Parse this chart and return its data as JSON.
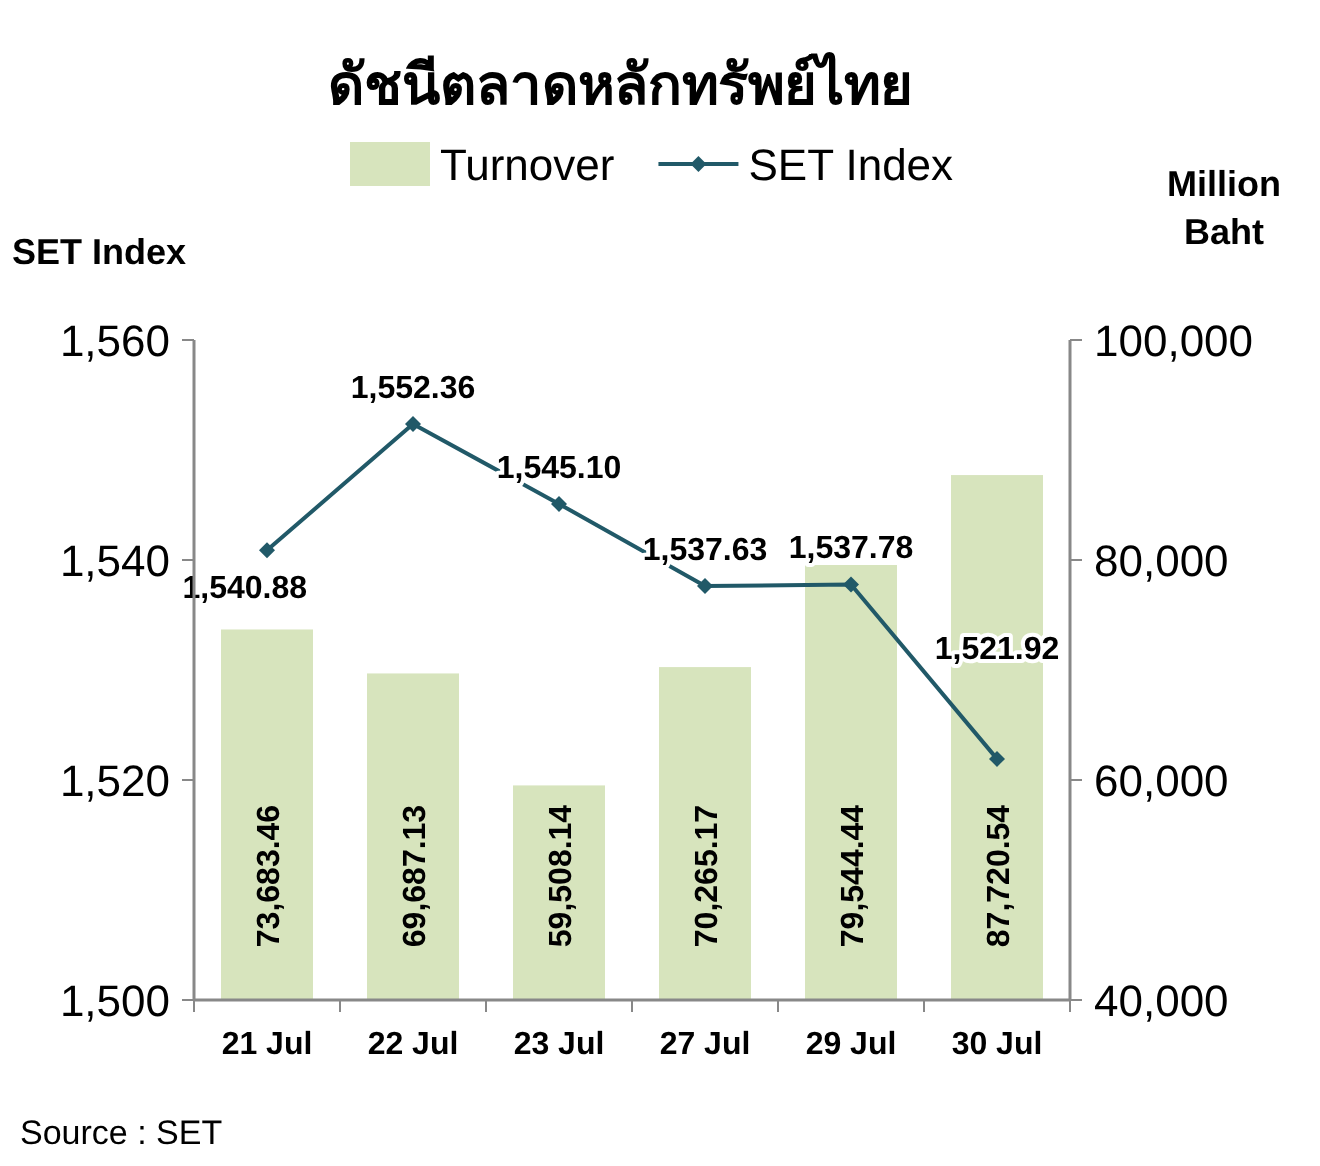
{
  "chart_data": {
    "type": "bar",
    "title": "ดัชนีตลาดหลักทรัพย์ไทย",
    "ylabel": "SET Index",
    "y2label": "Million Baht",
    "categories": [
      "21 Jul",
      "22 Jul",
      "23 Jul",
      "27 Jul",
      "29 Jul",
      "30 Jul"
    ],
    "series": [
      {
        "name": "Turnover",
        "axis": "y2",
        "color": "#d7e4bd",
        "values": [
          73683.46,
          69687.13,
          59508.14,
          70265.17,
          79544.44,
          87720.54
        ],
        "value_labels": [
          "73,683.46",
          "69,687.13",
          "59,508.14",
          "70,265.17",
          "79,544.44",
          "87,720.54"
        ]
      },
      {
        "name": "SET Index",
        "type": "line",
        "axis": "y",
        "color": "#215968",
        "marker": "diamond",
        "values": [
          1540.88,
          1552.36,
          1545.1,
          1537.63,
          1537.78,
          1521.92
        ],
        "value_labels": [
          "1,540.88",
          "1,552.36",
          "1,545.10",
          "1,537.63",
          "1,537.78",
          "1,521.92"
        ]
      }
    ],
    "ylim": [
      1500,
      1560
    ],
    "yticks": [
      {
        "value": 1500,
        "label": "1,500"
      },
      {
        "value": 1520,
        "label": "1,520"
      },
      {
        "value": 1540,
        "label": "1,540"
      },
      {
        "value": 1560,
        "label": "1,560"
      }
    ],
    "y2lim": [
      40000,
      100000
    ],
    "y2ticks": [
      {
        "value": 40000,
        "label": "40,000"
      },
      {
        "value": 60000,
        "label": "60,000"
      },
      {
        "value": 80000,
        "label": "80,000"
      },
      {
        "value": 100000,
        "label": "100,000"
      }
    ],
    "legend": "top",
    "annotations": [
      "Source : SET"
    ]
  }
}
